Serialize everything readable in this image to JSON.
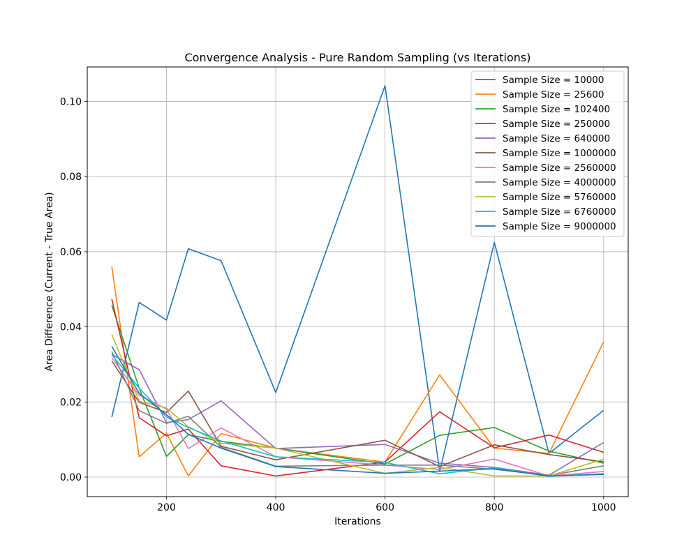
{
  "chart_data": {
    "type": "line",
    "title": "Convergence Analysis - Pure Random Sampling (vs Iterations)",
    "xlabel": "Iterations",
    "ylabel": "Area Difference (Current - True Area)",
    "x": [
      100,
      150,
      200,
      240,
      300,
      400,
      600,
      700,
      800,
      900,
      1000
    ],
    "xlim": [
      55,
      1045
    ],
    "ylim": [
      -0.0052,
      0.1092
    ],
    "xticks": [
      200,
      400,
      600,
      800,
      1000
    ],
    "xtick_labels": [
      "200",
      "400",
      "600",
      "800",
      "1000"
    ],
    "yticks": [
      0.0,
      0.02,
      0.04,
      0.06,
      0.08,
      0.1
    ],
    "ytick_labels": [
      "0.00",
      "0.02",
      "0.04",
      "0.06",
      "0.08",
      "0.10"
    ],
    "grid": true,
    "legend_position": "upper-right",
    "series": [
      {
        "name": "Sample Size = 10000",
        "color": "#1f77b4",
        "values": [
          0.016,
          0.0465,
          0.0418,
          0.0608,
          0.0576,
          0.0225,
          0.1042,
          0.0015,
          0.0625,
          0.0063,
          0.0178
        ]
      },
      {
        "name": "Sample Size = 25600",
        "color": "#ff7f0e",
        "values": [
          0.056,
          0.0054,
          0.0117,
          0.0003,
          0.0116,
          0.0077,
          0.004,
          0.0272,
          0.0077,
          0.0063,
          0.036
        ]
      },
      {
        "name": "Sample Size = 102400",
        "color": "#2ca02c",
        "values": [
          0.0457,
          0.0237,
          0.0055,
          0.0113,
          0.0095,
          0.0077,
          0.0035,
          0.0111,
          0.0132,
          0.0069,
          0.0037
        ]
      },
      {
        "name": "Sample Size = 250000",
        "color": "#d62728",
        "values": [
          0.0474,
          0.0158,
          0.011,
          0.0128,
          0.003,
          0.0003,
          0.004,
          0.0174,
          0.0078,
          0.0112,
          0.0066
        ]
      },
      {
        "name": "Sample Size = 640000",
        "color": "#9467bd",
        "values": [
          0.0327,
          0.0286,
          0.0145,
          0.0153,
          0.0203,
          0.0076,
          0.0087,
          0.0037,
          0.0026,
          0.0005,
          0.0092
        ]
      },
      {
        "name": "Sample Size = 1000000",
        "color": "#8c564b",
        "values": [
          0.0309,
          0.0199,
          0.0172,
          0.0229,
          0.0082,
          0.0046,
          0.0098,
          0.0028,
          0.0086,
          0.006,
          0.0041
        ]
      },
      {
        "name": "Sample Size = 2560000",
        "color": "#e377c2",
        "values": [
          0.0318,
          0.0218,
          0.0181,
          0.0076,
          0.0131,
          0.0054,
          0.0032,
          0.002,
          0.0048,
          0.0003,
          0.0015
        ]
      },
      {
        "name": "Sample Size = 4000000",
        "color": "#7f7f7f",
        "values": [
          0.0334,
          0.0177,
          0.0143,
          0.0162,
          0.0079,
          0.0029,
          0.0032,
          0.0032,
          0.0021,
          0.0004,
          0.003
        ]
      },
      {
        "name": "Sample Size = 5760000",
        "color": "#bcbd22",
        "values": [
          0.038,
          0.0202,
          0.0184,
          0.0134,
          0.009,
          0.0077,
          0.001,
          0.0026,
          0.0003,
          0.0003,
          0.0048
        ]
      },
      {
        "name": "Sample Size = 6760000",
        "color": "#17becf",
        "values": [
          0.0326,
          0.0237,
          0.016,
          0.0132,
          0.0096,
          0.0054,
          0.0039,
          0.0009,
          0.0025,
          0.0002,
          0.0009
        ]
      },
      {
        "name": "Sample Size = 9000000",
        "color": "#1f77b4",
        "values": [
          0.0348,
          0.0223,
          0.0166,
          0.0114,
          0.0077,
          0.0028,
          0.001,
          0.0016,
          0.0022,
          0.0003,
          0.0007
        ]
      }
    ]
  }
}
